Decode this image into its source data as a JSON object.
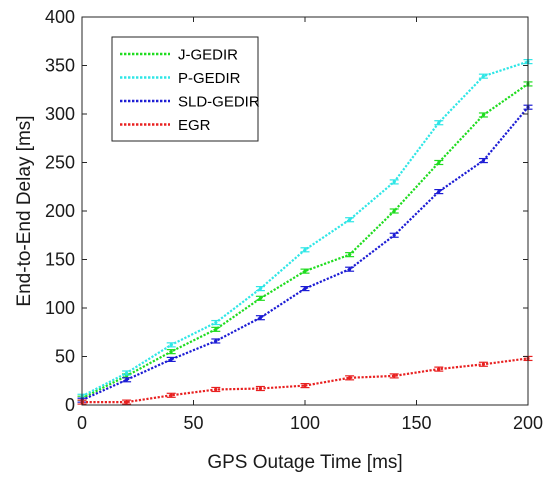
{
  "chart_data": {
    "type": "line",
    "title": "",
    "xlabel": "GPS Outage Time  [ms]",
    "ylabel": "End-to-End Delay [ms]",
    "xlim": [
      0,
      200
    ],
    "ylim": [
      0,
      400
    ],
    "xticks": [
      0,
      50,
      100,
      150,
      200
    ],
    "yticks": [
      0,
      50,
      100,
      150,
      200,
      250,
      300,
      350,
      400
    ],
    "grid": false,
    "legend_position": "top-left",
    "series": [
      {
        "name": "J-GEDIR",
        "color": "#1fdc1f",
        "x": [
          0,
          20,
          40,
          60,
          80,
          100,
          120,
          140,
          160,
          180,
          200
        ],
        "y": [
          7,
          30,
          55,
          78,
          110,
          138,
          155,
          200,
          250,
          299,
          331
        ],
        "errorbars": true
      },
      {
        "name": "P-GEDIR",
        "color": "#2ee6e6",
        "x": [
          0,
          20,
          40,
          60,
          80,
          100,
          120,
          140,
          160,
          180,
          200
        ],
        "y": [
          9,
          33,
          62,
          85,
          120,
          160,
          191,
          230,
          291,
          339,
          354
        ],
        "errorbars": true
      },
      {
        "name": "SLD-GEDIR",
        "color": "#1c1cd4",
        "x": [
          0,
          20,
          40,
          60,
          80,
          100,
          120,
          140,
          160,
          180,
          200
        ],
        "y": [
          5,
          26,
          47,
          66,
          90,
          120,
          140,
          175,
          220,
          252,
          307
        ],
        "errorbars": true
      },
      {
        "name": "EGR",
        "color": "#e82020",
        "x": [
          0,
          20,
          40,
          60,
          80,
          100,
          120,
          140,
          160,
          180,
          200
        ],
        "y": [
          3,
          3,
          10,
          16,
          17,
          20,
          28,
          30,
          37,
          42,
          48
        ],
        "errorbars": true
      }
    ]
  }
}
